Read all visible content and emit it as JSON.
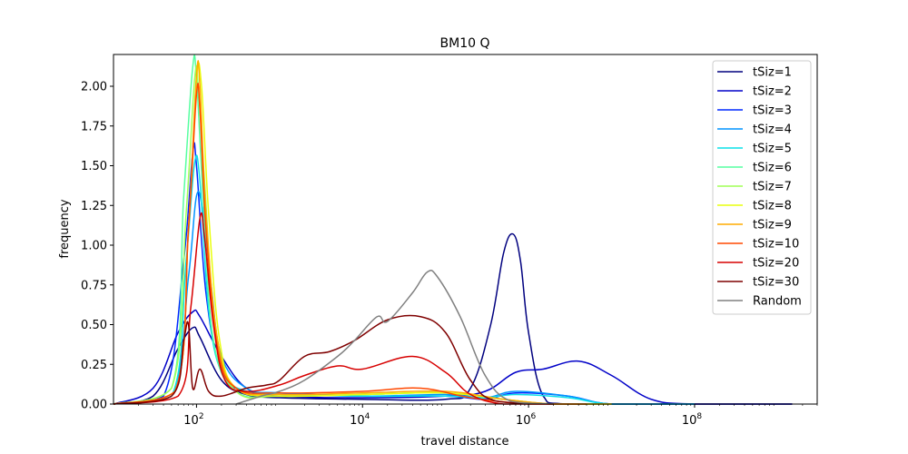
{
  "chart_data": {
    "type": "line",
    "title": "BM10 Q",
    "xlabel": "travel distance",
    "ylabel": "frequency",
    "xscale": "log",
    "xlim": [
      10,
      3000000000
    ],
    "ylim": [
      0,
      2.2
    ],
    "x_ticks": [
      {
        "value": 100,
        "base": "10",
        "exp": "2"
      },
      {
        "value": 10000,
        "base": "10",
        "exp": "4"
      },
      {
        "value": 1000000,
        "base": "10",
        "exp": "6"
      },
      {
        "value": 100000000,
        "base": "10",
        "exp": "8"
      }
    ],
    "y_ticks": [
      {
        "value": 0.0,
        "label": "0.00"
      },
      {
        "value": 0.25,
        "label": "0.25"
      },
      {
        "value": 0.5,
        "label": "0.50"
      },
      {
        "value": 0.75,
        "label": "0.75"
      },
      {
        "value": 1.0,
        "label": "1.00"
      },
      {
        "value": 1.25,
        "label": "1.25"
      },
      {
        "value": 1.5,
        "label": "1.50"
      },
      {
        "value": 1.75,
        "label": "1.75"
      },
      {
        "value": 2.0,
        "label": "2.00"
      }
    ],
    "grid": false,
    "legend_position": "top-right",
    "series": [
      {
        "name": "tSiz=1",
        "color": "#00007f",
        "x": [
          10,
          30,
          60,
          90,
          110,
          200,
          400,
          1000,
          10000,
          100000,
          200000,
          350000,
          500000,
          650000,
          800000,
          1000000,
          1500000,
          3000000,
          100000000,
          1500000000
        ],
        "y": [
          0,
          0.05,
          0.35,
          0.48,
          0.42,
          0.15,
          0.06,
          0.04,
          0.03,
          0.03,
          0.1,
          0.5,
          0.95,
          1.07,
          0.9,
          0.45,
          0.05,
          0.0,
          0,
          0
        ]
      },
      {
        "name": "tSiz=2",
        "color": "#0000c8",
        "x": [
          10,
          30,
          60,
          90,
          110,
          200,
          400,
          1000,
          10000,
          100000,
          300000,
          700000,
          1500000,
          4000000,
          10000000,
          30000000,
          100000000,
          1500000000
        ],
        "y": [
          0,
          0.1,
          0.45,
          0.58,
          0.55,
          0.3,
          0.1,
          0.05,
          0.04,
          0.05,
          0.08,
          0.2,
          0.22,
          0.27,
          0.18,
          0.03,
          0.0,
          0
        ]
      },
      {
        "name": "tSiz=3",
        "color": "#0028ff",
        "x": [
          10,
          40,
          70,
          90,
          100,
          130,
          200,
          400,
          1000,
          10000,
          100000,
          300000,
          700000,
          3000000,
          10000000,
          100000000
        ],
        "y": [
          0,
          0.05,
          0.9,
          1.58,
          1.5,
          0.7,
          0.2,
          0.08,
          0.07,
          0.05,
          0.05,
          0.03,
          0.07,
          0.05,
          0.0,
          0
        ]
      },
      {
        "name": "tSiz=4",
        "color": "#0094ff",
        "x": [
          10,
          50,
          80,
          100,
          120,
          150,
          200,
          400,
          1000,
          10000,
          100000,
          300000,
          700000,
          3000000,
          10000000,
          100000000
        ],
        "y": [
          0,
          0.05,
          0.8,
          1.31,
          1.2,
          0.75,
          0.3,
          0.1,
          0.07,
          0.05,
          0.06,
          0.04,
          0.08,
          0.05,
          0.0,
          0
        ]
      },
      {
        "name": "tSiz=5",
        "color": "#0ce0e8",
        "x": [
          10,
          50,
          75,
          95,
          110,
          140,
          200,
          400,
          1000,
          10000,
          100000,
          300000,
          700000,
          3000000,
          10000000,
          100000000
        ],
        "y": [
          0,
          0.05,
          0.9,
          1.52,
          1.4,
          0.6,
          0.2,
          0.08,
          0.06,
          0.05,
          0.05,
          0.04,
          0.06,
          0.04,
          0.0,
          0
        ]
      },
      {
        "name": "tSiz=6",
        "color": "#56ffa0",
        "x": [
          10,
          50,
          70,
          90,
          100,
          120,
          160,
          300,
          1000,
          10000,
          100000,
          500000,
          2000000,
          10000000
        ],
        "y": [
          0,
          0.1,
          1.3,
          2.12,
          2.05,
          1.3,
          0.4,
          0.08,
          0.05,
          0.06,
          0.07,
          0.03,
          0.0,
          0
        ]
      },
      {
        "name": "tSiz=7",
        "color": "#a0ff56",
        "x": [
          10,
          50,
          75,
          95,
          105,
          125,
          170,
          300,
          1000,
          10000,
          100000,
          500000,
          2000000,
          10000000
        ],
        "y": [
          0,
          0.1,
          1.2,
          2.05,
          2.0,
          1.4,
          0.45,
          0.08,
          0.05,
          0.06,
          0.07,
          0.03,
          0.0,
          0
        ]
      },
      {
        "name": "tSiz=8",
        "color": "#e8ff0c",
        "x": [
          10,
          55,
          80,
          100,
          115,
          140,
          190,
          300,
          1000,
          10000,
          100000,
          500000,
          2000000,
          10000000
        ],
        "y": [
          0,
          0.08,
          1.1,
          2.05,
          2.0,
          1.2,
          0.4,
          0.1,
          0.05,
          0.06,
          0.07,
          0.03,
          0.0,
          0
        ]
      },
      {
        "name": "tSiz=9",
        "color": "#ffab00",
        "x": [
          10,
          55,
          80,
          100,
          110,
          130,
          180,
          300,
          1000,
          10000,
          100000,
          500000,
          2000000,
          10000000
        ],
        "y": [
          0,
          0.08,
          1.1,
          2.07,
          2.0,
          1.2,
          0.4,
          0.1,
          0.06,
          0.07,
          0.08,
          0.03,
          0.0,
          0
        ]
      },
      {
        "name": "tSiz=10",
        "color": "#ff4800",
        "x": [
          10,
          55,
          80,
          100,
          110,
          130,
          180,
          300,
          1000,
          10000,
          50000,
          200000,
          1000000,
          5000000
        ],
        "y": [
          0,
          0.08,
          1.1,
          1.95,
          1.85,
          1.1,
          0.35,
          0.1,
          0.07,
          0.08,
          0.1,
          0.04,
          0.0,
          0
        ]
      },
      {
        "name": "tSiz=20",
        "color": "#d70000",
        "x": [
          10,
          60,
          85,
          110,
          125,
          160,
          220,
          400,
          1000,
          2000,
          5000,
          10000,
          40000,
          100000,
          200000,
          500000,
          2000000
        ],
        "y": [
          0,
          0.05,
          0.6,
          1.17,
          1.05,
          0.5,
          0.15,
          0.08,
          0.12,
          0.18,
          0.24,
          0.22,
          0.3,
          0.2,
          0.06,
          0.0,
          0
        ]
      },
      {
        "name": "tSiz=30",
        "color": "#7f0000",
        "x": [
          10,
          50,
          70,
          80,
          90,
          110,
          140,
          200,
          400,
          700,
          1000,
          2000,
          4000,
          8000,
          20000,
          50000,
          100000,
          200000,
          400000,
          2000000
        ],
        "y": [
          0,
          0.05,
          0.4,
          0.5,
          0.1,
          0.22,
          0.08,
          0.05,
          0.1,
          0.12,
          0.15,
          0.3,
          0.33,
          0.4,
          0.53,
          0.55,
          0.45,
          0.15,
          0.02,
          0
        ]
      },
      {
        "name": "Random",
        "color": "#808080",
        "x": [
          300,
          600,
          1000,
          2000,
          5000,
          8000,
          15000,
          20000,
          40000,
          60000,
          80000,
          150000,
          300000,
          600000,
          2000000
        ],
        "y": [
          0,
          0.05,
          0.08,
          0.15,
          0.3,
          0.4,
          0.55,
          0.52,
          0.7,
          0.83,
          0.8,
          0.55,
          0.18,
          0.02,
          0
        ]
      }
    ]
  }
}
